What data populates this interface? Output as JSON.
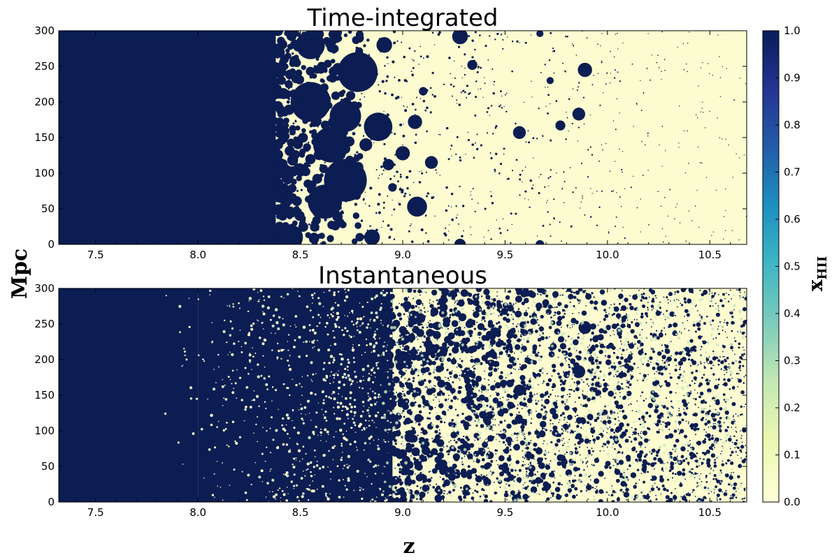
{
  "chart_data": [
    {
      "type": "heatmap",
      "title": "Time-integrated",
      "xlabel": "z",
      "ylabel": "Mpc",
      "xlim": [
        7.32,
        10.68
      ],
      "ylim": [
        0,
        300
      ],
      "xticks": [
        "7.5",
        "8.0",
        "8.5",
        "9.0",
        "9.5",
        "10.0",
        "10.5"
      ],
      "yticks": [
        "0",
        "50",
        "100",
        "150",
        "200",
        "250",
        "300"
      ],
      "fully_ionized_below_z": 8.38,
      "ionized_bubbles": [
        {
          "z": 8.78,
          "y": 242,
          "r": 28
        },
        {
          "z": 8.72,
          "y": 90,
          "r": 30
        },
        {
          "z": 8.65,
          "y": 140,
          "r": 25
        },
        {
          "z": 8.72,
          "y": 180,
          "r": 22
        },
        {
          "z": 8.88,
          "y": 165,
          "r": 20
        },
        {
          "z": 8.55,
          "y": 200,
          "r": 28
        },
        {
          "z": 8.62,
          "y": 60,
          "r": 24
        },
        {
          "z": 8.45,
          "y": 10,
          "r": 18
        },
        {
          "z": 8.55,
          "y": 280,
          "r": 20
        },
        {
          "z": 8.41,
          "y": 72,
          "r": 14
        },
        {
          "z": 8.85,
          "y": 10,
          "r": 11
        },
        {
          "z": 9.07,
          "y": 53,
          "r": 14
        },
        {
          "z": 9.28,
          "y": 292,
          "r": 11
        },
        {
          "z": 9.89,
          "y": 245,
          "r": 10
        },
        {
          "z": 9.57,
          "y": 157,
          "r": 9
        },
        {
          "z": 9.86,
          "y": 183,
          "r": 9
        },
        {
          "z": 9.77,
          "y": 167,
          "r": 7
        },
        {
          "z": 9.34,
          "y": 252,
          "r": 7
        },
        {
          "z": 9.06,
          "y": 172,
          "r": 10
        },
        {
          "z": 9.14,
          "y": 115,
          "r": 9
        },
        {
          "z": 9.0,
          "y": 128,
          "r": 10
        },
        {
          "z": 8.91,
          "y": 280,
          "r": 11
        },
        {
          "z": 8.82,
          "y": 140,
          "r": 9
        },
        {
          "z": 8.93,
          "y": 112,
          "r": 8
        },
        {
          "z": 9.72,
          "y": 230,
          "r": 5
        },
        {
          "z": 9.67,
          "y": 0,
          "r": 6
        },
        {
          "z": 9.28,
          "y": 0,
          "r": 8
        },
        {
          "z": 9.67,
          "y": 296,
          "r": 5
        },
        {
          "z": 8.95,
          "y": 80,
          "r": 6
        },
        {
          "z": 9.1,
          "y": 215,
          "r": 6
        }
      ]
    },
    {
      "type": "heatmap",
      "title": "Instantaneous",
      "xlabel": "z",
      "ylabel": "Mpc",
      "xlim": [
        7.32,
        10.68
      ],
      "ylim": [
        0,
        300
      ],
      "xticks": [
        "7.5",
        "8.0",
        "8.5",
        "9.0",
        "9.5",
        "10.0",
        "10.5"
      ],
      "yticks": [
        "0",
        "50",
        "100",
        "150",
        "200",
        "250",
        "300"
      ],
      "fully_ionized_below_z": 8.0,
      "ionized_bubbles": [
        {
          "z": 9.86,
          "y": 183,
          "r": 9
        },
        {
          "z": 9.89,
          "y": 245,
          "r": 9
        },
        {
          "z": 9.57,
          "y": 157,
          "r": 8
        },
        {
          "z": 8.6,
          "y": 150,
          "r": 22
        },
        {
          "z": 8.5,
          "y": 230,
          "r": 20
        },
        {
          "z": 8.75,
          "y": 260,
          "r": 15
        },
        {
          "z": 8.9,
          "y": 100,
          "r": 14
        },
        {
          "z": 8.4,
          "y": 60,
          "r": 16
        },
        {
          "z": 9.0,
          "y": 200,
          "r": 12
        }
      ]
    }
  ],
  "colorbar": {
    "label": "x",
    "label_sub": "HII",
    "ticks": [
      "0.0",
      "0.1",
      "0.2",
      "0.3",
      "0.4",
      "0.5",
      "0.6",
      "0.7",
      "0.8",
      "0.9",
      "1.0"
    ],
    "range": [
      0,
      1
    ],
    "colormap": "YlGnBu",
    "colors": [
      "#ffffd9",
      "#edf8b1",
      "#c7e9b4",
      "#7fcdbb",
      "#41b6c4",
      "#1d91c0",
      "#225ea8",
      "#253494",
      "#081d58"
    ]
  },
  "colors": {
    "ionized": "#0b1d52",
    "neutral": "#fcfcd0",
    "partial": "#c8e6c0"
  }
}
